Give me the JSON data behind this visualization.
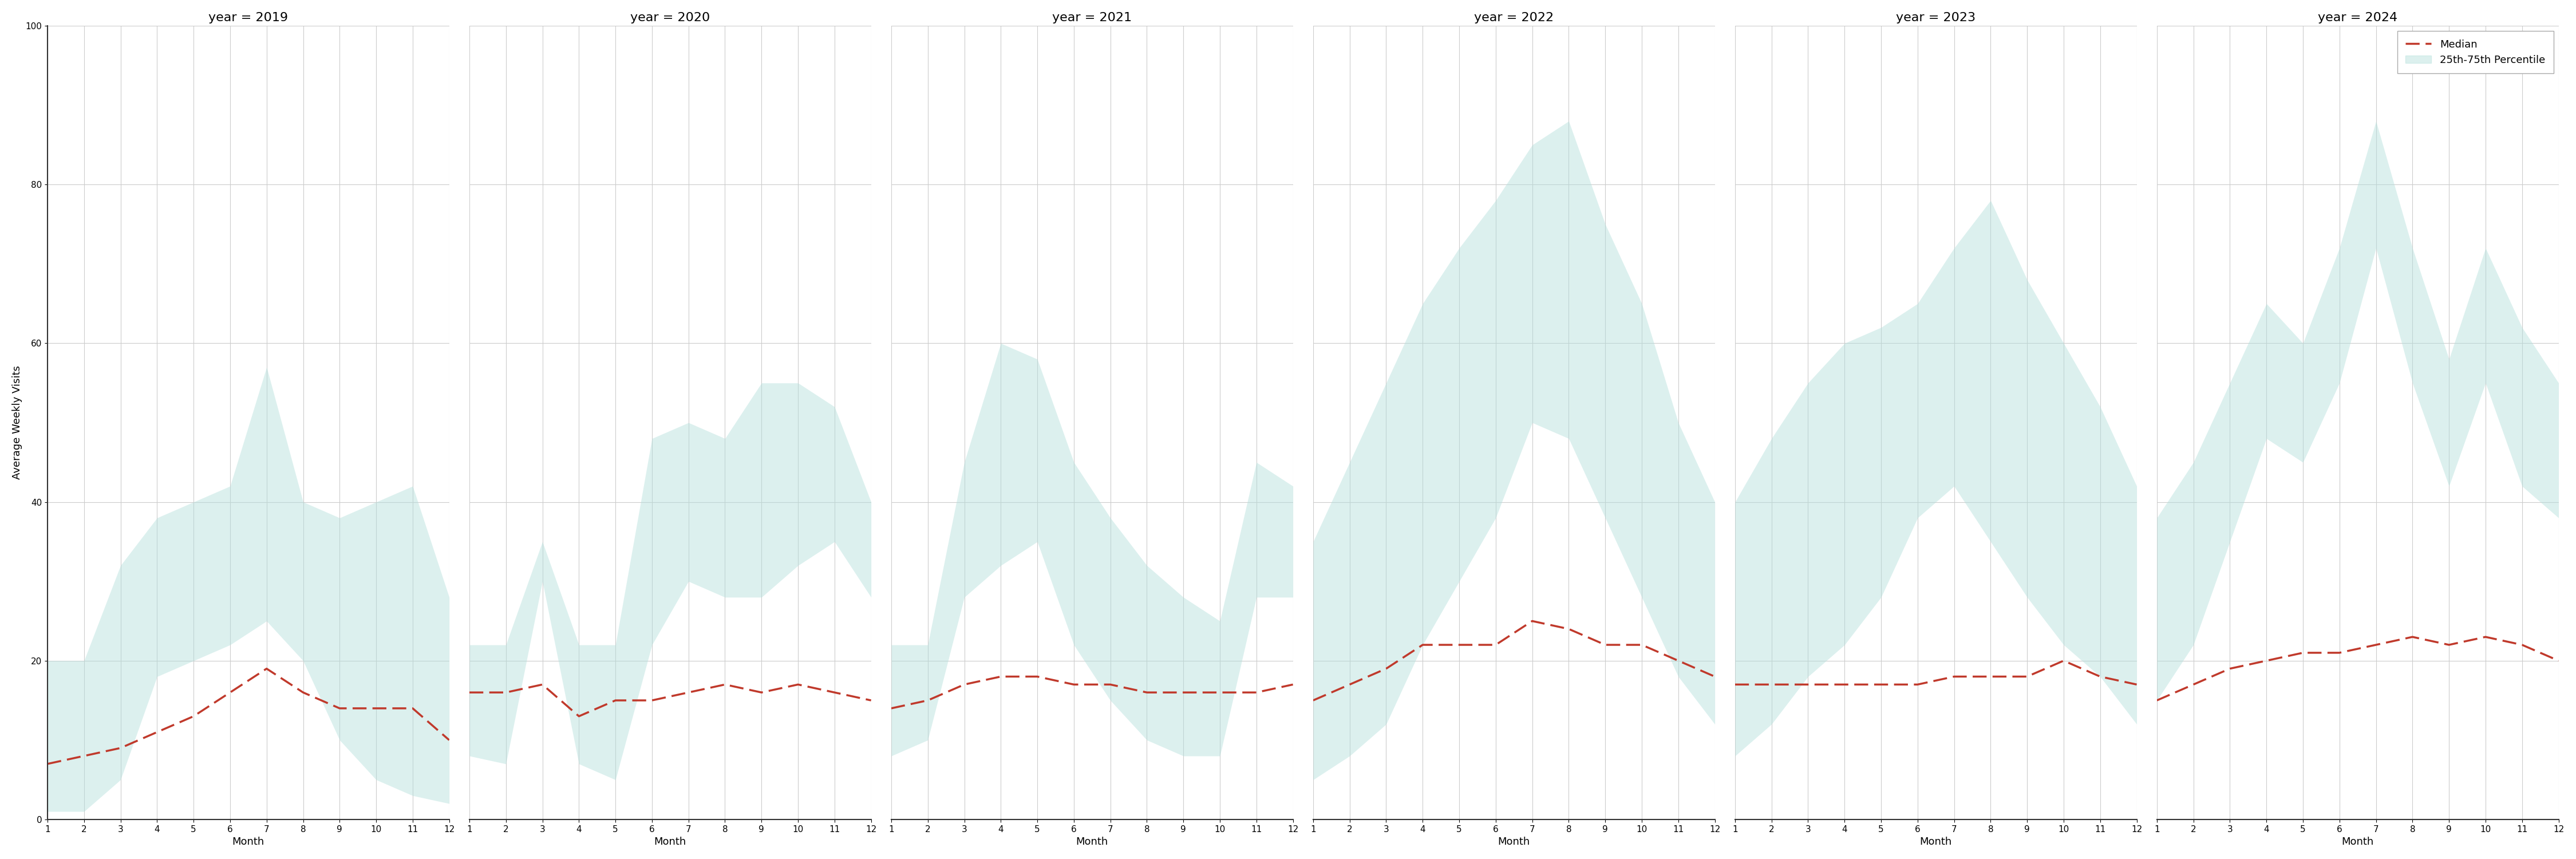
{
  "years": [
    2019,
    2020,
    2021,
    2022,
    2023,
    2024
  ],
  "months": [
    1,
    2,
    3,
    4,
    5,
    6,
    7,
    8,
    9,
    10,
    11,
    12
  ],
  "median": {
    "2019": [
      7,
      8,
      9,
      11,
      13,
      16,
      19,
      16,
      14,
      14,
      14,
      10
    ],
    "2020": [
      16,
      16,
      17,
      13,
      15,
      15,
      16,
      17,
      16,
      17,
      16,
      15
    ],
    "2021": [
      14,
      15,
      17,
      18,
      18,
      17,
      17,
      16,
      16,
      16,
      16,
      17
    ],
    "2022": [
      15,
      17,
      19,
      22,
      22,
      22,
      25,
      24,
      22,
      22,
      20,
      18
    ],
    "2023": [
      17,
      17,
      17,
      17,
      17,
      17,
      18,
      18,
      18,
      20,
      18,
      17
    ],
    "2024": [
      15,
      17,
      19,
      20,
      21,
      21,
      22,
      23,
      22,
      23,
      22,
      20
    ]
  },
  "p25": {
    "2019": [
      1,
      1,
      5,
      18,
      20,
      22,
      25,
      20,
      10,
      5,
      3,
      2
    ],
    "2020": [
      8,
      7,
      30,
      7,
      5,
      22,
      30,
      28,
      28,
      32,
      35,
      28
    ],
    "2021": [
      8,
      10,
      28,
      32,
      35,
      22,
      15,
      10,
      8,
      8,
      28,
      28
    ],
    "2022": [
      5,
      8,
      12,
      22,
      30,
      38,
      50,
      48,
      38,
      28,
      18,
      12
    ],
    "2023": [
      8,
      12,
      18,
      22,
      28,
      38,
      42,
      35,
      28,
      22,
      18,
      12
    ],
    "2024": [
      15,
      22,
      35,
      48,
      45,
      55,
      72,
      55,
      42,
      55,
      42,
      38
    ]
  },
  "p75": {
    "2019": [
      20,
      20,
      32,
      38,
      40,
      42,
      57,
      40,
      38,
      40,
      42,
      28
    ],
    "2020": [
      22,
      22,
      35,
      22,
      22,
      48,
      50,
      48,
      55,
      55,
      52,
      40
    ],
    "2021": [
      22,
      22,
      45,
      60,
      58,
      45,
      38,
      32,
      28,
      25,
      45,
      42
    ],
    "2022": [
      35,
      45,
      55,
      65,
      72,
      78,
      85,
      88,
      75,
      65,
      50,
      40
    ],
    "2023": [
      40,
      48,
      55,
      60,
      62,
      65,
      72,
      78,
      68,
      60,
      52,
      42
    ],
    "2024": [
      38,
      45,
      55,
      65,
      60,
      72,
      88,
      72,
      58,
      72,
      62,
      55
    ]
  },
  "fill_color": "#b2dfdb",
  "fill_alpha": 0.45,
  "line_color": "#c0392b",
  "ylabel": "Average Weekly Visits",
  "xlabel": "Month",
  "ylim": [
    0,
    100
  ],
  "yticks": [
    0,
    20,
    40,
    60,
    80,
    100
  ],
  "xticks": [
    1,
    2,
    3,
    4,
    5,
    6,
    7,
    8,
    9,
    10,
    11,
    12
  ],
  "background_color": "#ffffff",
  "grid_color": "#cccccc",
  "title_fontsize": 16,
  "label_fontsize": 13,
  "tick_fontsize": 11,
  "legend_fontsize": 13
}
